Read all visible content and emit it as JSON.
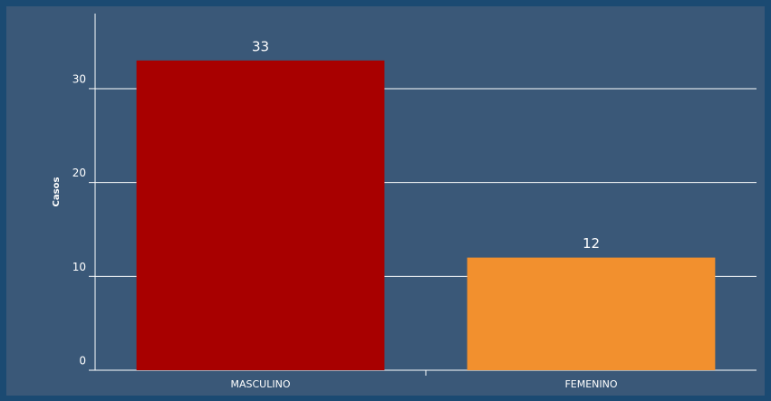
{
  "chart_data": {
    "type": "bar",
    "y_label": "Casos",
    "categories": [
      "MASCULINO",
      "FEMENINO"
    ],
    "values": [
      33,
      12
    ],
    "colors": [
      "#a80000",
      "#f2902e"
    ],
    "ylim": [
      0,
      38
    ],
    "yticks": [
      0,
      10,
      20,
      30
    ],
    "grid": true
  }
}
